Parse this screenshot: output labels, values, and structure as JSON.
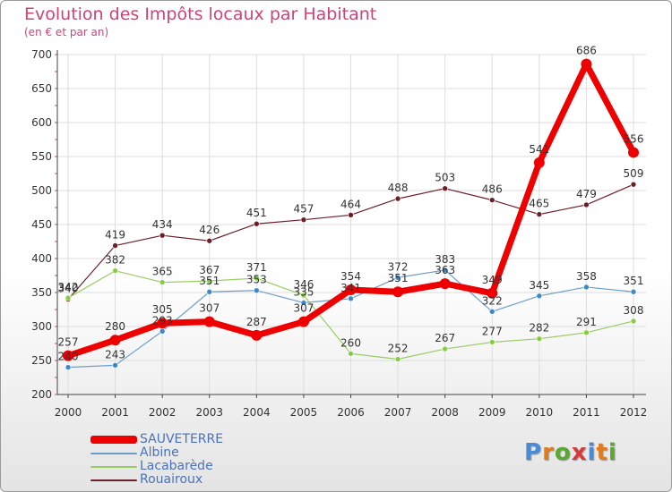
{
  "title": "Evolution des Impôts locaux par Habitant",
  "subtitle": "(en € et par an)",
  "logo": {
    "text": "Proxiti",
    "colors": [
      "#4a8bd6",
      "#e07b1e",
      "#5aa832",
      "#d83a3a",
      "#4a8bd6",
      "#e07b1e",
      "#5aa832"
    ]
  },
  "chart_data": {
    "type": "line",
    "title": "Evolution des Impôts locaux par Habitant",
    "subtitle": "(en € et par an)",
    "x": [
      "2000",
      "2001",
      "2002",
      "2003",
      "2004",
      "2005",
      "2006",
      "2007",
      "2008",
      "2009",
      "2010",
      "2011",
      "2012"
    ],
    "ylim": [
      200,
      700
    ],
    "yticks": [
      200,
      250,
      300,
      350,
      400,
      450,
      500,
      550,
      600,
      650,
      700
    ],
    "grid": true,
    "series": [
      {
        "name": "Rouairoux",
        "color": "#6b2027",
        "marker": "#6b2027",
        "width": 1.2,
        "r": 3,
        "values": [
          340,
          419,
          434,
          426,
          451,
          457,
          464,
          488,
          503,
          486,
          465,
          479,
          509
        ],
        "labels": [
          "340",
          "419",
          "434",
          "426",
          "451",
          "457",
          "464",
          "488",
          "503",
          "486",
          "465",
          "479",
          "509"
        ]
      },
      {
        "name": "Lacabarède",
        "color": "#99cc66",
        "marker": "#88cc44",
        "width": 1.2,
        "r": 3,
        "values": [
          342,
          382,
          365,
          367,
          371,
          346,
          260,
          252,
          267,
          277,
          282,
          291,
          308
        ],
        "labels": [
          "342",
          "382",
          "365",
          "367",
          "371",
          "346",
          "260",
          "252",
          "267",
          "277",
          "282",
          "291",
          "308"
        ]
      },
      {
        "name": "Albine",
        "color": "#6e9ec8",
        "marker": "#3f88c8",
        "width": 1.2,
        "r": 3,
        "values": [
          240,
          243,
          293,
          351,
          353,
          335,
          341,
          372,
          383,
          322,
          345,
          358,
          351
        ],
        "labels": [
          "240",
          "243",
          "293",
          "351",
          "353",
          "335",
          "341",
          "372",
          "383",
          "322",
          "345",
          "358",
          "351"
        ]
      },
      {
        "name": "SAUVETERRE",
        "color": "#ee0000",
        "marker": "#ee0000",
        "width": 7,
        "r": 6,
        "values": [
          257,
          280,
          305,
          307,
          287,
          307,
          354,
          351,
          363,
          349,
          541,
          686,
          556
        ],
        "labels": [
          "257",
          "280",
          "305",
          "307",
          "287",
          "307",
          "354",
          "351",
          "363",
          "349",
          "541",
          "686",
          "556"
        ]
      }
    ],
    "legend": [
      {
        "name": "SAUVETERRE",
        "color": "#ee0000"
      },
      {
        "name": "Albine",
        "color": "#6e9ec8"
      },
      {
        "name": "Lacabarède",
        "color": "#99cc66"
      },
      {
        "name": "Rouairoux",
        "color": "#6b2027"
      }
    ]
  }
}
